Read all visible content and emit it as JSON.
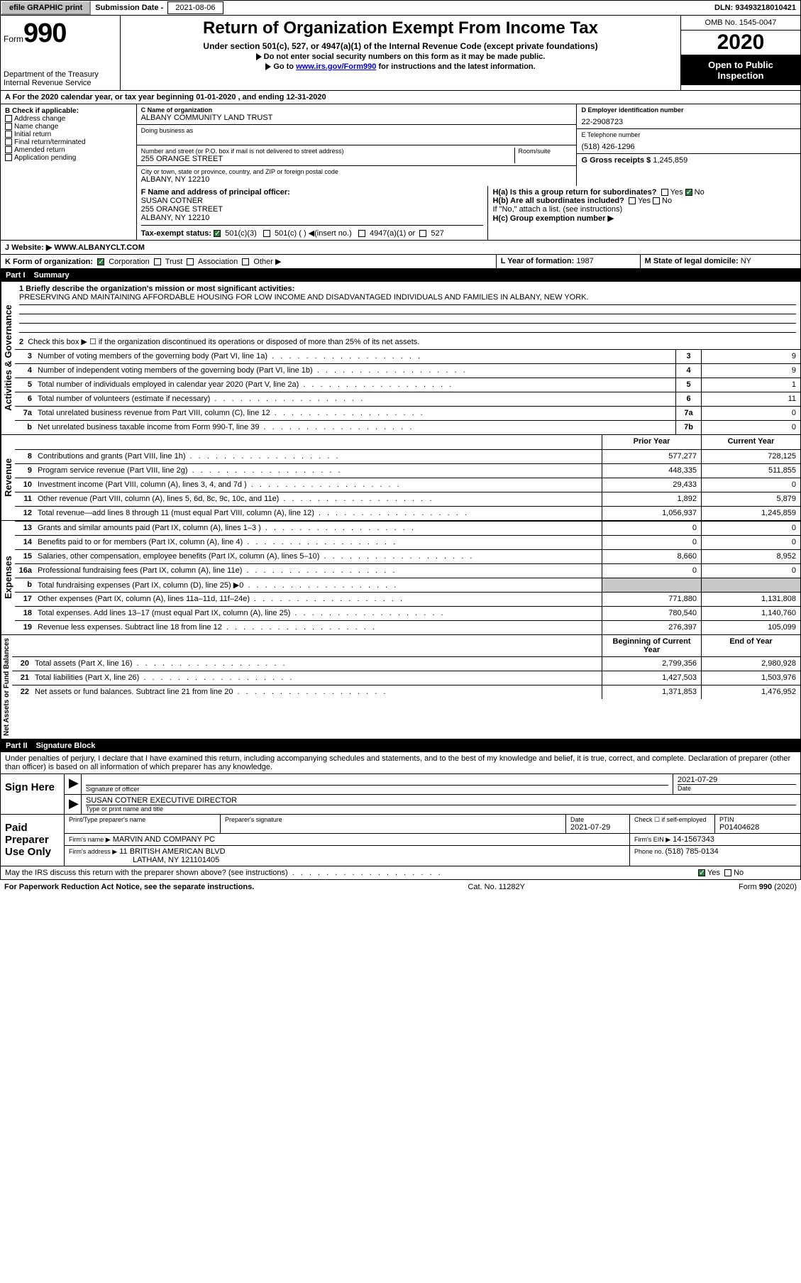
{
  "topbar": {
    "efile": "efile GRAPHIC print",
    "sub_label": "Submission Date - ",
    "sub_date": "2021-08-06",
    "dln_label": "DLN: ",
    "dln": "93493218010421"
  },
  "header": {
    "form_label": "Form",
    "form_no": "990",
    "dept1": "Department of the Treasury",
    "dept2": "Internal Revenue Service",
    "title": "Return of Organization Exempt From Income Tax",
    "subtitle": "Under section 501(c), 527, or 4947(a)(1) of the Internal Revenue Code (except private foundations)",
    "instr1": "Do not enter social security numbers on this form as it may be made public.",
    "instr2a": "Go to ",
    "instr2_link": "www.irs.gov/Form990",
    "instr2b": " for instructions and the latest information.",
    "omb": "OMB No. 1545-0047",
    "year": "2020",
    "open": "Open to Public Inspection"
  },
  "row_a": "A For the 2020 calendar year, or tax year beginning 01-01-2020    , and ending 12-31-2020",
  "box_b": {
    "label": "B Check if applicable:",
    "items": [
      "Address change",
      "Name change",
      "Initial return",
      "Final return/terminated",
      "Amended return",
      "Application pending"
    ]
  },
  "box_c": {
    "label": "C Name of organization",
    "name": "ALBANY COMMUNITY LAND TRUST",
    "dba_label": "Doing business as",
    "addr_label": "Number and street (or P.O. box if mail is not delivered to street address)",
    "room_label": "Room/suite",
    "addr": "255 ORANGE STREET",
    "city_label": "City or town, state or province, country, and ZIP or foreign postal code",
    "city": "ALBANY, NY  12210"
  },
  "box_d": {
    "label": "D Employer identification number",
    "value": "22-2908723"
  },
  "box_e": {
    "label": "E Telephone number",
    "value": "(518) 426-1296"
  },
  "box_g": {
    "label": "G Gross receipts $ ",
    "value": "1,245,859"
  },
  "box_f": {
    "label": "F  Name and address of principal officer:",
    "name": "SUSAN COTNER",
    "addr1": "255 ORANGE STREET",
    "addr2": "ALBANY, NY  12210"
  },
  "box_h": {
    "a": "H(a)  Is this a group return for subordinates?",
    "b": "H(b)  Are all subordinates included?",
    "b_note": "If \"No,\" attach a list. (see instructions)",
    "c": "H(c)  Group exemption number ▶",
    "yes": "Yes",
    "no": "No"
  },
  "box_i": {
    "label": "Tax-exempt status:",
    "opts": [
      "501(c)(3)",
      "501(c) (  ) ◀(insert no.)",
      "4947(a)(1) or",
      "527"
    ]
  },
  "box_j": {
    "label": "J    Website: ▶",
    "value": "WWW.ALBANYCLT.COM"
  },
  "box_k": {
    "label": "K Form of organization:",
    "opts": [
      "Corporation",
      "Trust",
      "Association",
      "Other ▶"
    ]
  },
  "box_l": {
    "label": "L Year of formation: ",
    "value": "1987"
  },
  "box_m": {
    "label": "M State of legal domicile: ",
    "value": "NY"
  },
  "part1": {
    "num": "Part I",
    "title": "Summary"
  },
  "summary": {
    "l1_label": "1   Briefly describe the organization's mission or most significant activities:",
    "l1_text": "PRESERVING AND MAINTAINING AFFORDABLE HOUSING FOR LOW INCOME AND DISADVANTAGED INDIVIDUALS AND FAMILIES IN ALBANY, NEW YORK.",
    "l2": "Check this box ▶ ☐  if the organization discontinued its operations or disposed of more than 25% of its net assets.",
    "lines_gov": [
      {
        "n": "3",
        "d": "Number of voting members of the governing body (Part VI, line 1a)",
        "b": "3",
        "v": "9"
      },
      {
        "n": "4",
        "d": "Number of independent voting members of the governing body (Part VI, line 1b)",
        "b": "4",
        "v": "9"
      },
      {
        "n": "5",
        "d": "Total number of individuals employed in calendar year 2020 (Part V, line 2a)",
        "b": "5",
        "v": "1"
      },
      {
        "n": "6",
        "d": "Total number of volunteers (estimate if necessary)",
        "b": "6",
        "v": "11"
      },
      {
        "n": "7a",
        "d": "Total unrelated business revenue from Part VIII, column (C), line 12",
        "b": "7a",
        "v": "0"
      },
      {
        "n": "b",
        "d": "Net unrelated business taxable income from Form 990-T, line 39",
        "b": "7b",
        "v": "0"
      }
    ],
    "col_hdr_prior": "Prior Year",
    "col_hdr_curr": "Current Year",
    "lines_rev": [
      {
        "n": "8",
        "d": "Contributions and grants (Part VIII, line 1h)",
        "p": "577,277",
        "c": "728,125"
      },
      {
        "n": "9",
        "d": "Program service revenue (Part VIII, line 2g)",
        "p": "448,335",
        "c": "511,855"
      },
      {
        "n": "10",
        "d": "Investment income (Part VIII, column (A), lines 3, 4, and 7d )",
        "p": "29,433",
        "c": "0"
      },
      {
        "n": "11",
        "d": "Other revenue (Part VIII, column (A), lines 5, 6d, 8c, 9c, 10c, and 11e)",
        "p": "1,892",
        "c": "5,879"
      },
      {
        "n": "12",
        "d": "Total revenue—add lines 8 through 11 (must equal Part VIII, column (A), line 12)",
        "p": "1,056,937",
        "c": "1,245,859"
      }
    ],
    "lines_exp": [
      {
        "n": "13",
        "d": "Grants and similar amounts paid (Part IX, column (A), lines 1–3 )",
        "p": "0",
        "c": "0"
      },
      {
        "n": "14",
        "d": "Benefits paid to or for members (Part IX, column (A), line 4)",
        "p": "0",
        "c": "0"
      },
      {
        "n": "15",
        "d": "Salaries, other compensation, employee benefits (Part IX, column (A), lines 5–10)",
        "p": "8,660",
        "c": "8,952"
      },
      {
        "n": "16a",
        "d": "Professional fundraising fees (Part IX, column (A), line 11e)",
        "p": "0",
        "c": "0"
      },
      {
        "n": "b",
        "d": "Total fundraising expenses (Part IX, column (D), line 25) ▶0",
        "p": "",
        "c": "",
        "grey": true
      },
      {
        "n": "17",
        "d": "Other expenses (Part IX, column (A), lines 11a–11d, 11f–24e)",
        "p": "771,880",
        "c": "1,131,808"
      },
      {
        "n": "18",
        "d": "Total expenses. Add lines 13–17 (must equal Part IX, column (A), line 25)",
        "p": "780,540",
        "c": "1,140,760"
      },
      {
        "n": "19",
        "d": "Revenue less expenses. Subtract line 18 from line 12",
        "p": "276,397",
        "c": "105,099"
      }
    ],
    "col_hdr_beg": "Beginning of Current Year",
    "col_hdr_end": "End of Year",
    "lines_net": [
      {
        "n": "20",
        "d": "Total assets (Part X, line 16)",
        "p": "2,799,356",
        "c": "2,980,928"
      },
      {
        "n": "21",
        "d": "Total liabilities (Part X, line 26)",
        "p": "1,427,503",
        "c": "1,503,976"
      },
      {
        "n": "22",
        "d": "Net assets or fund balances. Subtract line 21 from line 20",
        "p": "1,371,853",
        "c": "1,476,952"
      }
    ]
  },
  "vlabels": {
    "gov": "Activities & Governance",
    "rev": "Revenue",
    "exp": "Expenses",
    "net": "Net Assets or Fund Balances"
  },
  "part2": {
    "num": "Part II",
    "title": "Signature Block"
  },
  "sig": {
    "penalty": "Under penalties of perjury, I declare that I have examined this return, including accompanying schedules and statements, and to the best of my knowledge and belief, it is true, correct, and complete. Declaration of preparer (other than officer) is based on all information of which preparer has any knowledge.",
    "sign_here": "Sign Here",
    "sig_officer": "Signature of officer",
    "date_label": "Date",
    "date": "2021-07-29",
    "name": "SUSAN COTNER  EXECUTIVE DIRECTOR",
    "name_label": "Type or print name and title",
    "paid": "Paid Preparer Use Only",
    "prep_name_label": "Print/Type preparer's name",
    "prep_sig_label": "Preparer's signature",
    "prep_date_label": "Date",
    "prep_date": "2021-07-29",
    "check_label": "Check ☐ if self-employed",
    "ptin_label": "PTIN",
    "ptin": "P01404628",
    "firm_name_label": "Firm's name    ▶",
    "firm_name": "MARVIN AND COMPANY PC",
    "firm_ein_label": "Firm's EIN ▶",
    "firm_ein": "14-1567343",
    "firm_addr_label": "Firm's address ▶",
    "firm_addr1": "11 BRITISH AMERICAN BLVD",
    "firm_addr2": "LATHAM, NY  121101405",
    "phone_label": "Phone no. ",
    "phone": "(518) 785-0134",
    "discuss": "May the IRS discuss this return with the preparer shown above? (see instructions)"
  },
  "footer": {
    "left": "For Paperwork Reduction Act Notice, see the separate instructions.",
    "mid": "Cat. No. 11282Y",
    "right": "Form 990 (2020)"
  }
}
